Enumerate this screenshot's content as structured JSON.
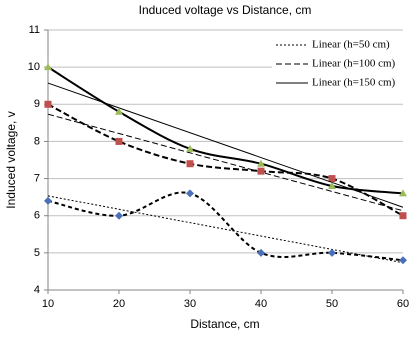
{
  "chart_data": {
    "type": "line",
    "title": "Induced voltage vs Distance, cm",
    "x_label": "Distance, cm",
    "y_label": "Induced voltage, v",
    "x": [
      10,
      20,
      30,
      40,
      50,
      60
    ],
    "xlim": [
      10,
      60
    ],
    "xticks": [
      10,
      20,
      30,
      40,
      50,
      60
    ],
    "ylim": [
      4,
      11
    ],
    "yticks": [
      4,
      5,
      6,
      7,
      8,
      9,
      10,
      11
    ],
    "grid": true,
    "legend": "top-right",
    "series": [
      {
        "name": "Linear (h=50 cm)",
        "color": "#4a70b8",
        "marker": "diamond",
        "curve_dash": "4 3",
        "trend_dash": "2 2",
        "values": [
          6.4,
          6.0,
          6.6,
          5.0,
          5.0,
          4.8
        ]
      },
      {
        "name": "Linear (h=100 cm)",
        "color": "#c0504d",
        "marker": "square",
        "curve_dash": "6 3",
        "trend_dash": "6 3",
        "values": [
          9.0,
          8.0,
          7.4,
          7.2,
          7.0,
          6.0
        ]
      },
      {
        "name": "Linear (h=150 cm)",
        "color": "#9bbb59",
        "marker": "triangle",
        "curve_dash": "none",
        "trend_dash": "none",
        "values": [
          10.0,
          8.8,
          7.8,
          7.4,
          6.8,
          6.6
        ]
      }
    ]
  }
}
